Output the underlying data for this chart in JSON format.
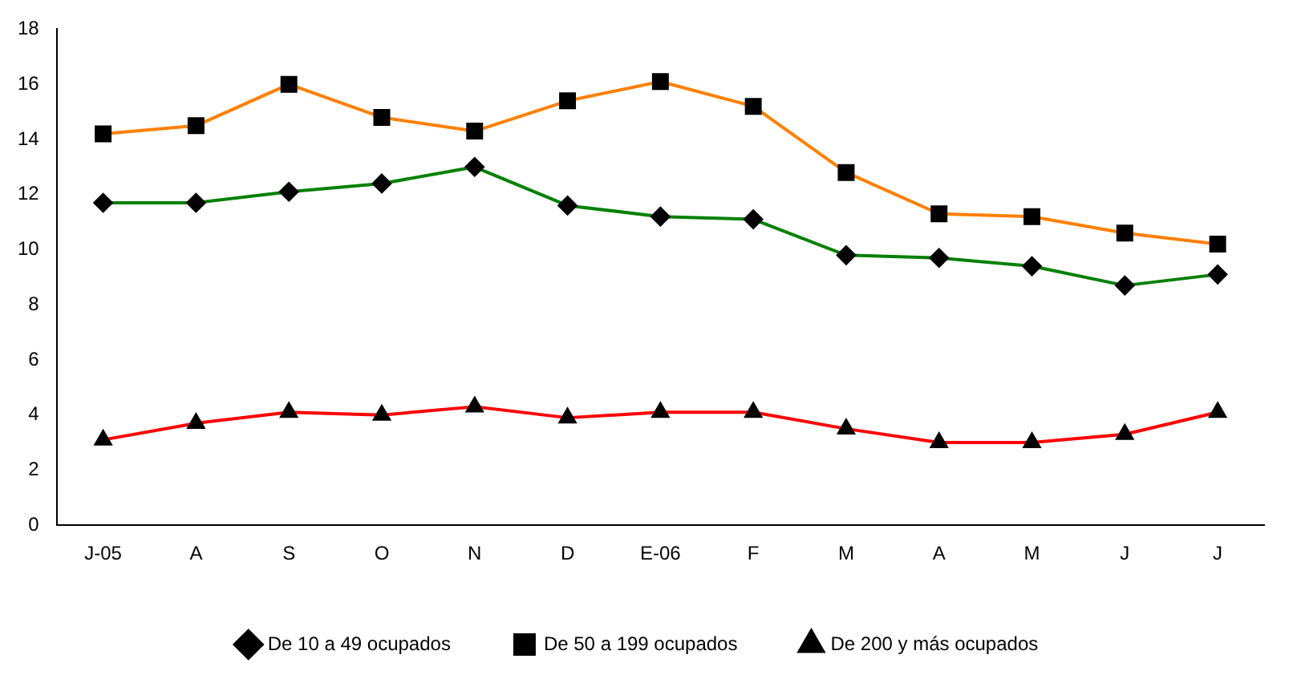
{
  "chart_data": {
    "type": "line",
    "categories": [
      "J-05",
      "A",
      "S",
      "O",
      "N",
      "D",
      "E-06",
      "F",
      "M",
      "A",
      "M",
      "J",
      "J"
    ],
    "series": [
      {
        "name": "De 10 a 49 ocupados",
        "color": "#008000",
        "marker": "diamond",
        "values": [
          11.7,
          11.7,
          12.1,
          12.4,
          13.0,
          11.6,
          11.2,
          11.1,
          9.8,
          9.7,
          9.4,
          8.7,
          9.1
        ]
      },
      {
        "name": "De 50 a 199 ocupados",
        "color": "#ff8000",
        "marker": "square",
        "values": [
          14.2,
          14.5,
          16.0,
          14.8,
          14.3,
          15.4,
          16.1,
          15.2,
          12.8,
          11.3,
          11.2,
          10.6,
          10.2
        ]
      },
      {
        "name": "De 200 y más ocupados",
        "color": "#ff0000",
        "marker": "triangle",
        "values": [
          3.1,
          3.7,
          4.1,
          4.0,
          4.3,
          3.9,
          4.1,
          4.1,
          3.5,
          3.0,
          3.0,
          3.3,
          4.1
        ]
      }
    ],
    "ylim": [
      0,
      18
    ],
    "yticks": [
      0,
      2,
      4,
      6,
      8,
      10,
      12,
      14,
      16,
      18
    ],
    "grid": false,
    "legend": "bottom"
  }
}
